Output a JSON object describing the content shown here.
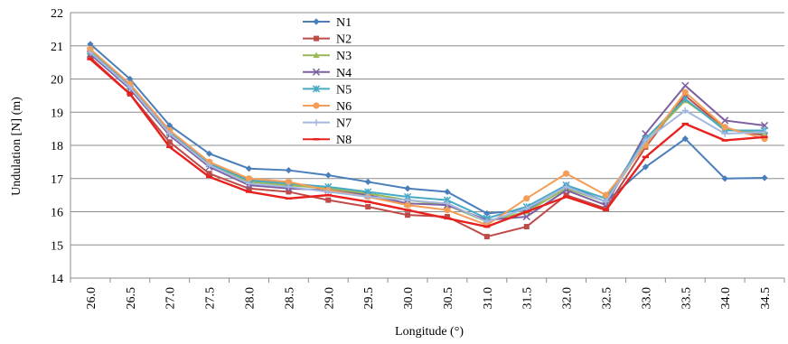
{
  "chart_data": {
    "type": "line",
    "title": "",
    "xlabel": "Longitude (°)",
    "ylabel": "Undulation [N] (m)",
    "ylim": [
      14,
      22
    ],
    "yticks": [
      14,
      15,
      16,
      17,
      18,
      19,
      20,
      21,
      22
    ],
    "grid": "horizontal",
    "legend_position": "top-center-inside",
    "categories": [
      "26.0",
      "26.5",
      "27.0",
      "27.5",
      "28.0",
      "28.5",
      "29.0",
      "29.5",
      "30.0",
      "30.5",
      "31.0",
      "31.5",
      "32.0",
      "32.5",
      "33.0",
      "33.5",
      "34.0",
      "34.5"
    ],
    "series": [
      {
        "name": "N1",
        "color": "#4a7ebb",
        "marker": "diamond",
        "values": [
          21.05,
          20.0,
          18.6,
          17.75,
          17.3,
          17.25,
          17.1,
          16.9,
          16.7,
          16.6,
          15.95,
          16.05,
          16.8,
          16.3,
          17.35,
          18.2,
          17.0,
          17.02
        ]
      },
      {
        "name": "N2",
        "color": "#be4b48",
        "marker": "square",
        "values": [
          20.65,
          19.55,
          18.1,
          17.15,
          16.7,
          16.6,
          16.35,
          16.15,
          15.9,
          15.85,
          15.25,
          15.55,
          16.5,
          16.1,
          17.95,
          19.5,
          18.5,
          18.3
        ]
      },
      {
        "name": "N3",
        "color": "#98b954",
        "marker": "triangle",
        "values": [
          20.8,
          19.75,
          18.35,
          17.45,
          16.9,
          16.8,
          16.7,
          16.55,
          16.35,
          16.2,
          15.7,
          16.0,
          16.7,
          16.3,
          18.1,
          19.35,
          18.5,
          18.35
        ]
      },
      {
        "name": "N4",
        "color": "#7d60a0",
        "marker": "x",
        "values": [
          20.75,
          19.7,
          18.3,
          17.35,
          16.8,
          16.7,
          16.65,
          16.5,
          16.25,
          16.2,
          15.75,
          15.85,
          16.65,
          16.2,
          18.35,
          19.8,
          18.75,
          18.6
        ]
      },
      {
        "name": "N5",
        "color": "#46aac5",
        "marker": "star",
        "values": [
          20.85,
          19.8,
          18.4,
          17.45,
          16.95,
          16.85,
          16.75,
          16.6,
          16.45,
          16.35,
          15.8,
          16.15,
          16.8,
          16.4,
          18.2,
          19.4,
          18.45,
          18.45
        ]
      },
      {
        "name": "N6",
        "color": "#f59d56",
        "marker": "circle",
        "values": [
          20.9,
          19.85,
          18.45,
          17.5,
          17.0,
          16.9,
          16.65,
          16.45,
          16.2,
          16.05,
          15.6,
          16.4,
          17.15,
          16.5,
          18.0,
          19.6,
          18.55,
          18.2
        ]
      },
      {
        "name": "N7",
        "color": "#a5b8e0",
        "marker": "plus",
        "values": [
          20.8,
          19.75,
          18.35,
          17.4,
          16.85,
          16.75,
          16.6,
          16.45,
          16.35,
          16.25,
          15.7,
          16.1,
          16.75,
          16.3,
          18.15,
          19.05,
          18.35,
          18.4
        ]
      },
      {
        "name": "N8",
        "color": "#e8201e",
        "marker": "dash",
        "values": [
          20.6,
          19.55,
          17.95,
          17.05,
          16.6,
          16.4,
          16.5,
          16.3,
          16.05,
          15.8,
          15.55,
          16.0,
          16.45,
          16.05,
          17.65,
          18.65,
          18.15,
          18.25
        ]
      }
    ]
  }
}
